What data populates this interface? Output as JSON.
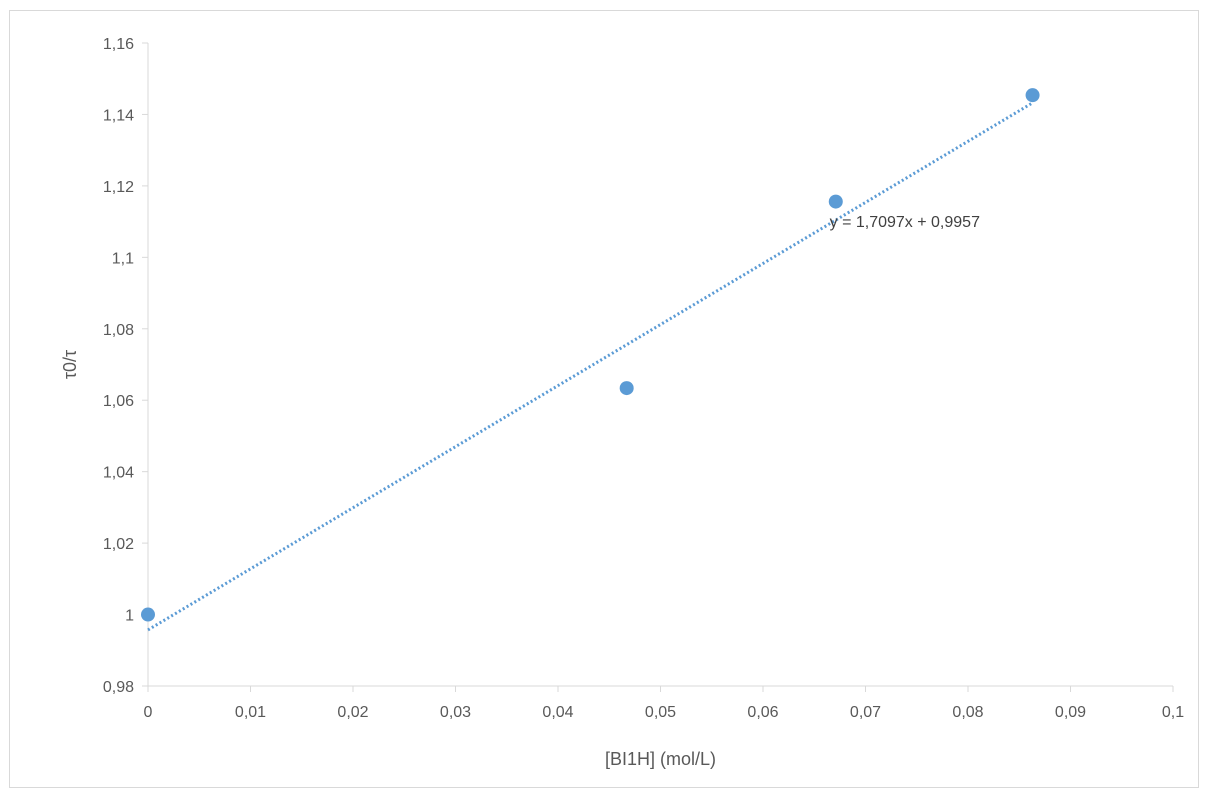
{
  "chart_data": {
    "type": "scatter",
    "title": "",
    "xlabel": "[BI1H] (mol/L)",
    "ylabel": "τ0/τ",
    "xlim": [
      0,
      0.1
    ],
    "ylim": [
      0.98,
      1.16
    ],
    "x_ticks": [
      0,
      0.01,
      0.02,
      0.03,
      0.04,
      0.05,
      0.06,
      0.07,
      0.08,
      0.09,
      0.1
    ],
    "x_tick_labels": [
      "0",
      "0,01",
      "0,02",
      "0,03",
      "0,04",
      "0,05",
      "0,06",
      "0,07",
      "0,08",
      "0,09",
      "0,1"
    ],
    "y_ticks": [
      0.98,
      1.0,
      1.02,
      1.04,
      1.06,
      1.08,
      1.1,
      1.12,
      1.14,
      1.16
    ],
    "y_tick_labels": [
      "0,98",
      "1",
      "1,02",
      "1,04",
      "1,06",
      "1,08",
      "1,1",
      "1,12",
      "1,14",
      "1,16"
    ],
    "grid": false,
    "legend": "none",
    "series": [
      {
        "x": [
          0,
          0.0467,
          0.0671,
          0.0863
        ],
        "y": [
          1.0,
          1.0634,
          1.1156,
          1.1454
        ],
        "color": "#5b9bd5",
        "marker": "circle"
      }
    ],
    "trendline": {
      "type": "linear",
      "slope": 1.7097,
      "intercept": 0.9957,
      "x_range": [
        0,
        0.0863
      ],
      "style": "dotted",
      "color": "#5b9bd5",
      "equation_label": "y = 1,7097x + 0,9957"
    }
  }
}
